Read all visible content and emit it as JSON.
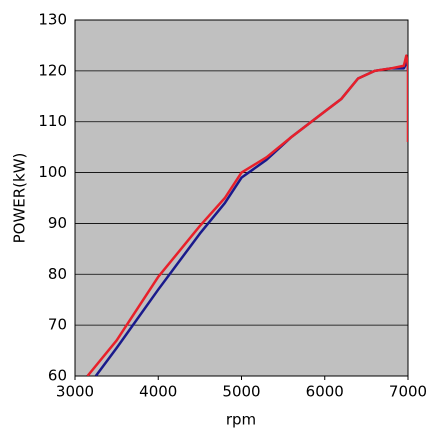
{
  "chart_data": {
    "type": "line",
    "x_label": "rpm",
    "y_label": "POWER(kW)",
    "xlim": [
      3000,
      7000
    ],
    "xticks": [
      3000,
      4000,
      5000,
      6000,
      7000
    ],
    "ylim": [
      60,
      130
    ],
    "yticks": [
      60,
      70,
      80,
      90,
      100,
      110,
      120,
      130
    ],
    "grid": true,
    "background": "#c0c0c0",
    "series": [
      {
        "color": "#1a1a8c",
        "x": [
          3250,
          3500,
          4000,
          4500,
          4800,
          5000,
          5300,
          5600,
          6000,
          6200,
          6400,
          6600,
          6800,
          6950,
          7000,
          7000
        ],
        "values": [
          60,
          65.5,
          77,
          88,
          94,
          99,
          102.5,
          107,
          112,
          114.5,
          118.5,
          120,
          120.5,
          120.5,
          122,
          120
        ]
      },
      {
        "color": "#e8202a",
        "x": [
          3150,
          3500,
          4000,
          4500,
          4800,
          5000,
          5300,
          5600,
          6000,
          6200,
          6400,
          6600,
          6800,
          6950,
          6980,
          7000,
          7000
        ],
        "values": [
          60,
          67,
          79.5,
          89.5,
          95,
          100,
          103,
          107,
          112,
          114.5,
          118.5,
          120,
          120.5,
          121,
          123,
          121,
          106
        ]
      }
    ]
  }
}
